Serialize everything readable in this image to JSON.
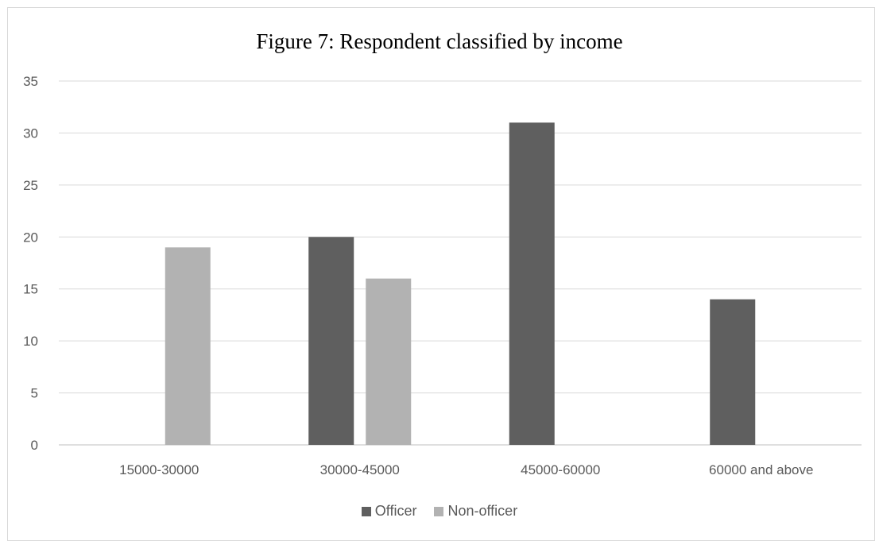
{
  "chart_data": {
    "type": "bar",
    "title": "Figure 7: Respondent classified by income",
    "xlabel": "",
    "ylabel": "",
    "categories": [
      "15000-30000",
      "30000-45000",
      "45000-60000",
      "60000 and above"
    ],
    "series": [
      {
        "name": "Officer",
        "values": [
          null,
          20,
          31,
          14
        ],
        "color": "#5f5f5f"
      },
      {
        "name": "Non-officer",
        "values": [
          19,
          16,
          null,
          null
        ],
        "color": "#b2b2b2"
      }
    ],
    "ylim": [
      0,
      35
    ],
    "yticks": [
      0,
      5,
      10,
      15,
      20,
      25,
      30,
      35
    ],
    "grid": true,
    "legend": "bottom"
  }
}
